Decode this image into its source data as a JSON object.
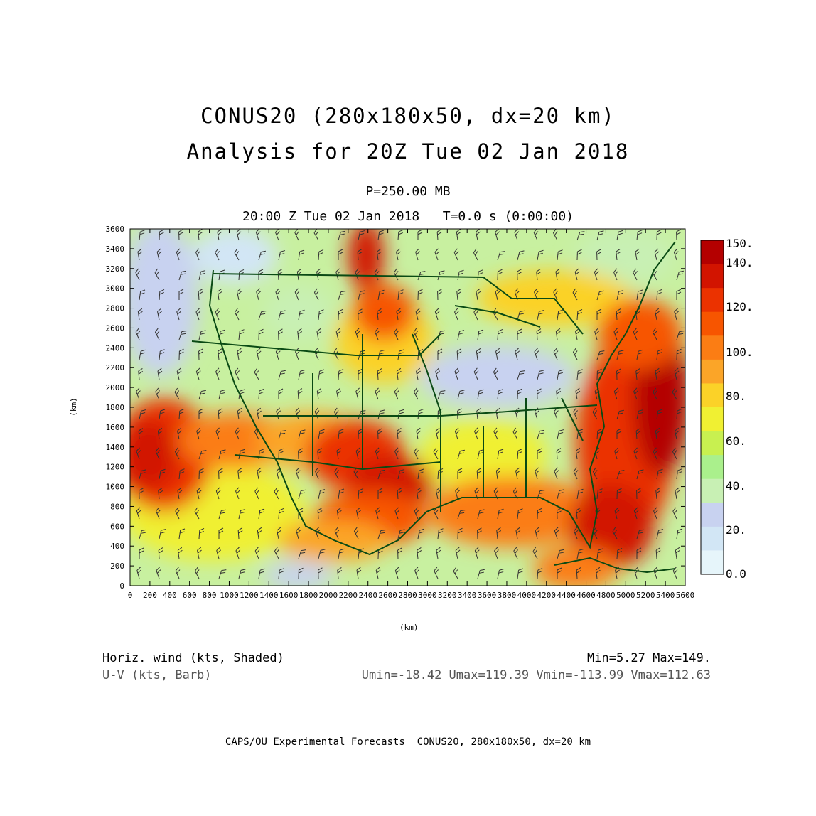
{
  "title_line1": "CONUS20 (280x180x50, dx=20 km)",
  "title_line2": "Analysis for 20Z Tue 02 Jan 2018",
  "level_text": "P=250.00 MB",
  "time_text": "20:00 Z Tue 02 Jan 2018   T=0.0 s (0:00:00)",
  "axes": {
    "xlabel": "(km)",
    "ylabel": "(km)",
    "x_ticks": [
      "0",
      "200",
      "400",
      "600",
      "800",
      "1000",
      "1200",
      "1400",
      "1600",
      "1800",
      "2000",
      "2200",
      "2400",
      "2600",
      "2800",
      "3000",
      "3200",
      "3400",
      "3600",
      "3800",
      "4000",
      "4200",
      "4400",
      "4600",
      "4800",
      "5000",
      "5200",
      "5400",
      "5600"
    ],
    "y_ticks": [
      "0",
      "200",
      "400",
      "600",
      "800",
      "1000",
      "1200",
      "1400",
      "1600",
      "1800",
      "2000",
      "2200",
      "2400",
      "2600",
      "2800",
      "3000",
      "3200",
      "3400",
      "3600"
    ]
  },
  "colorbar": {
    "labels": [
      "150.",
      "140.",
      "120.",
      "100.",
      "80.",
      "60.",
      "40.",
      "20.",
      "0.0"
    ],
    "colors": [
      "#b40000",
      "#d21400",
      "#eb3200",
      "#f75500",
      "#fb7d14",
      "#fba528",
      "#fbd228",
      "#f0f032",
      "#c8f050",
      "#aaf08c",
      "#c8f0b4",
      "#c8d2f0",
      "#d2e6f5",
      "#e6f5fa"
    ]
  },
  "info": {
    "field1_name": "Horiz. wind (kts, Shaded)",
    "field1_range": "Min=5.27 Max=149.",
    "field2_name": "U-V (kts, Barb)",
    "field2_range": "Umin=-18.42 Umax=119.39 Vmin=-113.99 Vmax=112.63"
  },
  "footer": "CAPS/OU Experimental Forecasts  CONUS20, 280x180x50, dx=20 km"
}
